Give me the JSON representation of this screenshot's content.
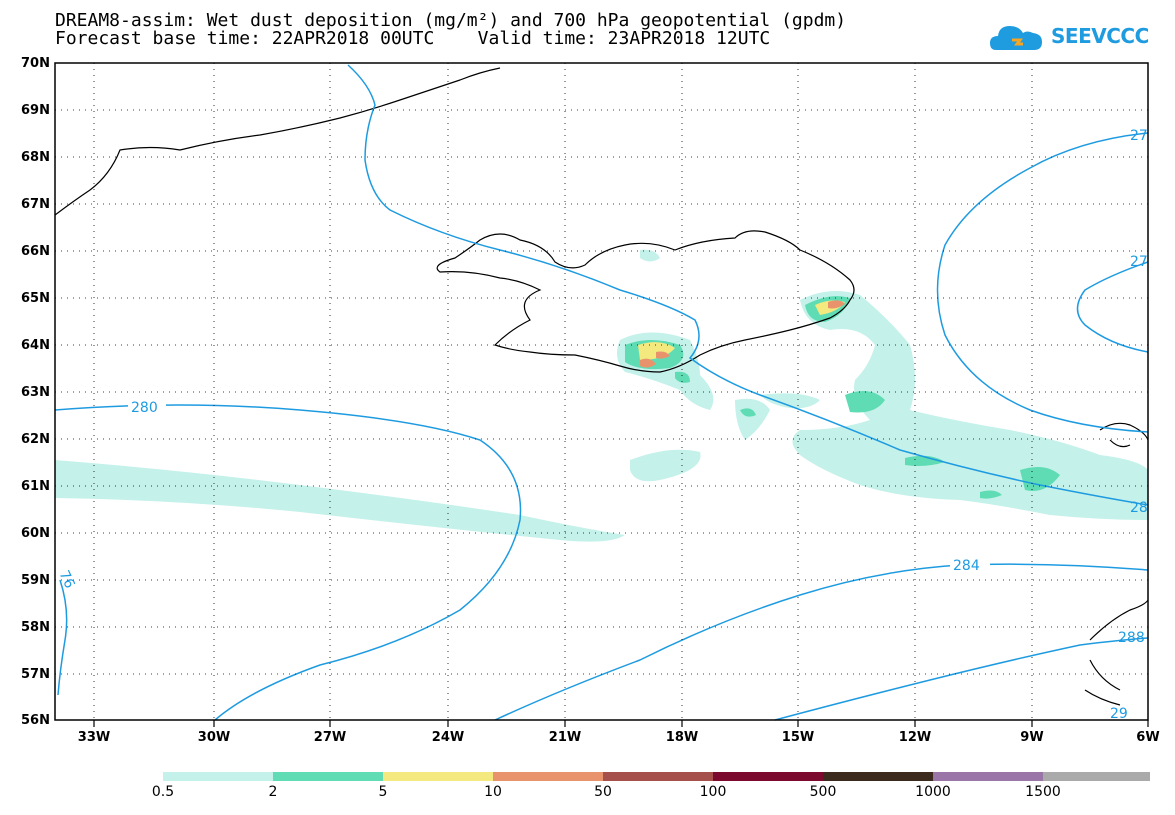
{
  "title": {
    "line1": "DREAM8-assim: Wet dust deposition (mg/m²) and 700 hPa geopotential (gpdm)",
    "line2": "Forecast base time: 22APR2018 00UTC    Valid time: 23APR2018 12UTC"
  },
  "logo": {
    "text": "SEEVCCC",
    "icon": "cloud-icon",
    "color": "#1f9be0"
  },
  "axes": {
    "lat_labels": [
      "70N",
      "69N",
      "68N",
      "67N",
      "66N",
      "65N",
      "64N",
      "63N",
      "62N",
      "61N",
      "60N",
      "59N",
      "58N",
      "57N",
      "56N"
    ],
    "lon_labels": [
      "33W",
      "30W",
      "27W",
      "24W",
      "21W",
      "18W",
      "15W",
      "12W",
      "9W",
      "6W"
    ]
  },
  "contours": {
    "color": "#1e9be0",
    "labels": [
      "27",
      "27",
      "280",
      "28",
      "284",
      "76",
      "288",
      "29"
    ]
  },
  "legend": {
    "colors": [
      "#c4f1ea",
      "#5fdcb4",
      "#f3e97f",
      "#e8936c",
      "#a5504a",
      "#7c0a2e",
      "#3b2a1e",
      "#9a76a8",
      "#aaaaaa"
    ],
    "labels": [
      "0.5",
      "2",
      "5",
      "10",
      "50",
      "100",
      "500",
      "1000",
      "1500"
    ]
  }
}
